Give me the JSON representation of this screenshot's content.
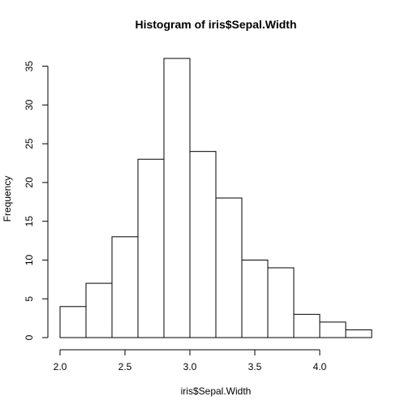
{
  "chart_data": {
    "type": "bar",
    "title": "Histogram of iris$Sepal.Width",
    "xlabel": "iris$Sepal.Width",
    "ylabel": "Frequency",
    "bins": [
      {
        "from": 2.0,
        "to": 2.2,
        "count": 4
      },
      {
        "from": 2.2,
        "to": 2.4,
        "count": 7
      },
      {
        "from": 2.4,
        "to": 2.6,
        "count": 13
      },
      {
        "from": 2.6,
        "to": 2.8,
        "count": 23
      },
      {
        "from": 2.8,
        "to": 3.0,
        "count": 36
      },
      {
        "from": 3.0,
        "to": 3.2,
        "count": 24
      },
      {
        "from": 3.2,
        "to": 3.4,
        "count": 18
      },
      {
        "from": 3.4,
        "to": 3.6,
        "count": 10
      },
      {
        "from": 3.6,
        "to": 3.8,
        "count": 9
      },
      {
        "from": 3.8,
        "to": 4.0,
        "count": 3
      },
      {
        "from": 4.0,
        "to": 4.2,
        "count": 2
      },
      {
        "from": 4.2,
        "to": 4.4,
        "count": 1
      }
    ],
    "xlim": [
      2.0,
      4.4
    ],
    "ylim": [
      0,
      36
    ],
    "x_ticks": [
      2.0,
      2.5,
      3.0,
      3.5,
      4.0
    ],
    "x_tick_labels": [
      "2.0",
      "2.5",
      "3.0",
      "3.5",
      "4.0"
    ],
    "y_ticks": [
      0,
      5,
      10,
      15,
      20,
      25,
      30,
      35
    ],
    "y_tick_labels": [
      "0",
      "5",
      "10",
      "15",
      "20",
      "25",
      "30",
      "35"
    ],
    "grid": false,
    "legend": "none"
  }
}
